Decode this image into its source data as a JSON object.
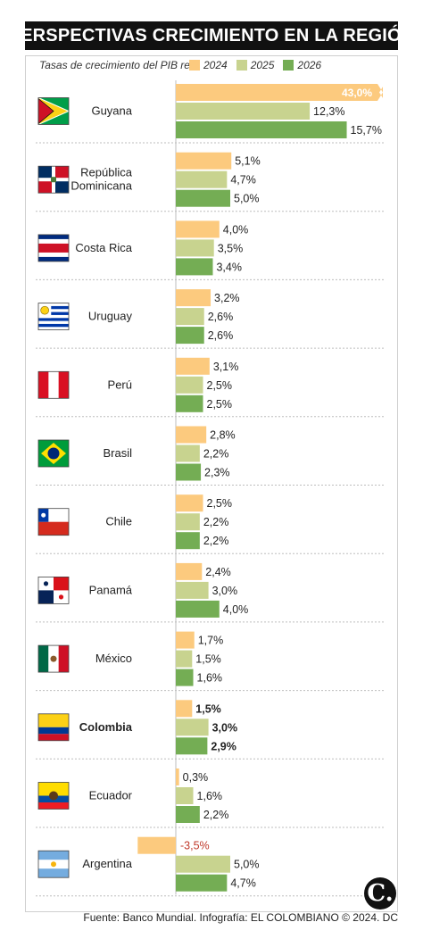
{
  "title": "PERSPECTIVAS CRECIMIENTO EN LA REGIÓN",
  "source": "Fuente: Banco Mundial. Infografía: EL COLOMBIANO © 2024. DC",
  "logo_text": "C.",
  "colors": {
    "y2024": "#fcca7e",
    "y2025": "#c8d38f",
    "y2026": "#74ad54",
    "negative_label": "#c0392b",
    "axis": "#bdbdbd"
  },
  "chart_data": {
    "type": "bar",
    "orientation": "horizontal",
    "title": "PERSPECTIVAS CRECIMIENTO EN LA REGIÓN",
    "subtitle": "Tasas de crecimiento del PIB real",
    "categories": [
      "Guyana",
      "República Dominicana",
      "Costa Rica",
      "Uruguay",
      "Perú",
      "Brasil",
      "Chile",
      "Panamá",
      "México",
      "Colombia",
      "Ecuador",
      "Argentina"
    ],
    "highlight_category": "Colombia",
    "series": [
      {
        "name": "2024",
        "values": [
          43.0,
          5.1,
          4.0,
          3.2,
          3.1,
          2.8,
          2.5,
          2.4,
          1.7,
          1.5,
          0.3,
          -3.5
        ],
        "labels": [
          "43,0%",
          "5,1%",
          "4,0%",
          "3,2%",
          "3,1%",
          "2,8%",
          "2,5%",
          "2,4%",
          "1,7%",
          "1,5%",
          "0,3%",
          "-3,5%"
        ]
      },
      {
        "name": "2025",
        "values": [
          12.3,
          4.7,
          3.5,
          2.6,
          2.5,
          2.2,
          2.2,
          3.0,
          1.5,
          3.0,
          1.6,
          5.0
        ],
        "labels": [
          "12,3%",
          "4,7%",
          "3,5%",
          "2,6%",
          "2,5%",
          "2,2%",
          "2,2%",
          "3,0%",
          "1,5%",
          "3,0%",
          "1,6%",
          "5,0%"
        ]
      },
      {
        "name": "2026",
        "values": [
          15.7,
          5.0,
          3.4,
          2.6,
          2.5,
          2.3,
          2.2,
          4.0,
          1.6,
          2.9,
          2.2,
          4.7
        ],
        "labels": [
          "15,7%",
          "5,0%",
          "3,4%",
          "2,6%",
          "2,5%",
          "2,3%",
          "2,2%",
          "4,0%",
          "1,6%",
          "2,9%",
          "2,2%",
          "4,7%"
        ]
      }
    ],
    "truncated_bars": [
      {
        "series": "2024",
        "category": "Guyana"
      }
    ],
    "legend_position": "top",
    "flag_icons": [
      "guyana-flag-icon",
      "dominican-republic-flag-icon",
      "costa-rica-flag-icon",
      "uruguay-flag-icon",
      "peru-flag-icon",
      "brazil-flag-icon",
      "chile-flag-icon",
      "panama-flag-icon",
      "mexico-flag-icon",
      "colombia-flag-icon",
      "ecuador-flag-icon",
      "argentina-flag-icon"
    ]
  }
}
